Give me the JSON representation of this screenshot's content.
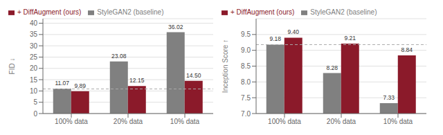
{
  "chart_data": [
    {
      "type": "bar",
      "ylabel": "FID ↓",
      "categories": [
        "100% data",
        "20% data",
        "10% data"
      ],
      "series": [
        {
          "name": "StyleGAN2 (baseline)",
          "color": "#808080",
          "values": [
            11.07,
            23.08,
            36.02
          ],
          "value_labels": [
            "11.07",
            "23.08",
            "36.02"
          ]
        },
        {
          "name": "+ DiffAugment (ours)",
          "color": "#8B1A2A",
          "values": [
            9.89,
            12.15,
            14.5
          ],
          "value_labels": [
            "9.89",
            "12.15",
            "14.50"
          ]
        }
      ],
      "data_labels": true,
      "reference_lines": [
        {
          "y": 10.9,
          "color": "#aaaaaa",
          "line_style": "dashed"
        }
      ],
      "ylim": [
        0,
        42
      ],
      "yticks": [
        0,
        5,
        10,
        15,
        20,
        25,
        30,
        35,
        40
      ],
      "grid": true,
      "legend": "upper left"
    },
    {
      "type": "bar",
      "ylabel": "Inception Score ↑",
      "categories": [
        "100% data",
        "20% data",
        "10% data"
      ],
      "series": [
        {
          "name": "StyleGAN2 (baseline)",
          "color": "#808080",
          "values": [
            9.18,
            8.28,
            7.33
          ],
          "value_labels": [
            "9.18",
            "8.28",
            "7.33"
          ]
        },
        {
          "name": "+ DiffAugment (ours)",
          "color": "#8B1A2A",
          "values": [
            9.4,
            9.21,
            8.84
          ],
          "value_labels": [
            "9.40",
            "9.21",
            "8.84"
          ]
        }
      ],
      "data_labels": true,
      "reference_lines": [
        {
          "y": 9.18,
          "color": "#aaaaaa",
          "line_style": "dashed"
        }
      ],
      "ylim": [
        7,
        10.0
      ],
      "yticks": [
        {
          "value": 7.0,
          "label": "7.0"
        },
        7.5,
        {
          "value": 8.0,
          "label": "8.0"
        },
        8.5,
        {
          "value": 9.0,
          "label": "9.0"
        },
        9.5
      ],
      "grid": true,
      "legend": "upper left"
    }
  ]
}
